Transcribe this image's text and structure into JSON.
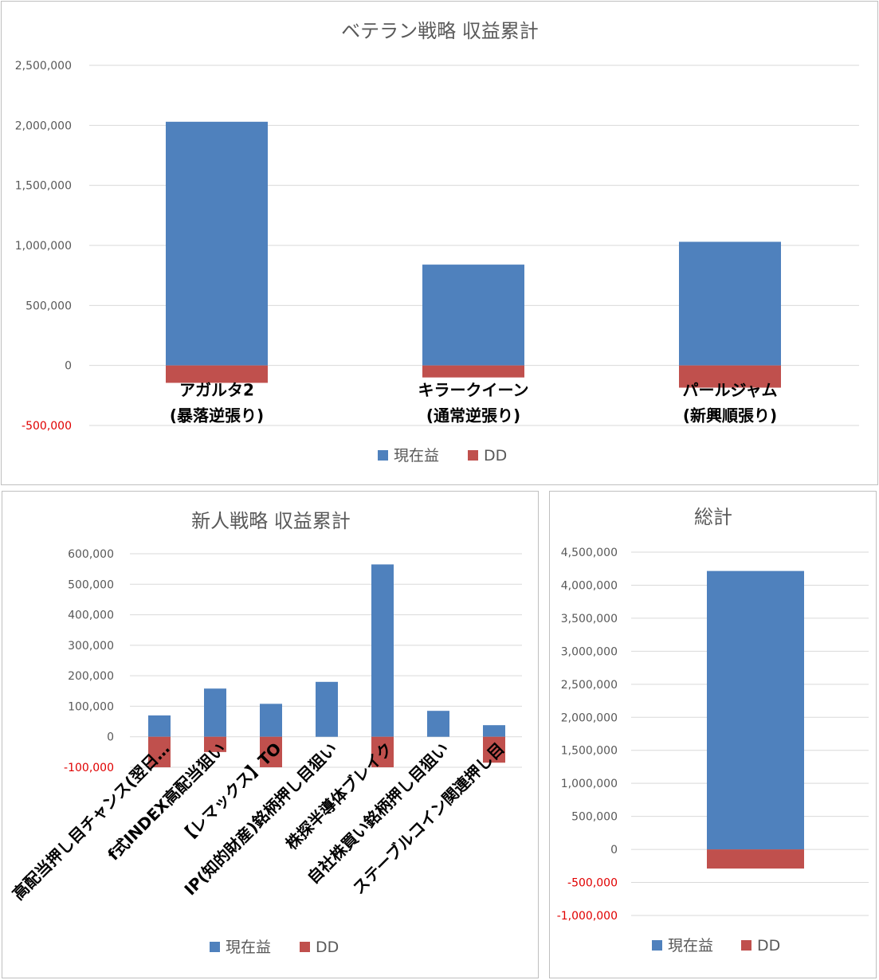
{
  "chart_data": [
    {
      "type": "bar",
      "stacked": true,
      "title": "ベテラン戦略 収益累計",
      "categories": [
        [
          "アガルタ2",
          "(暴落逆張り)"
        ],
        [
          "キラークイーン",
          "(通常逆張り)"
        ],
        [
          "パールジャム",
          "(新興順張り)"
        ]
      ],
      "series": [
        {
          "name": "現在益",
          "color": "#4f81bd",
          "values": [
            2030000,
            840000,
            1030000
          ]
        },
        {
          "name": "DD",
          "color": "#c0504d",
          "values": [
            -145000,
            -100000,
            -185000
          ]
        }
      ],
      "ylim": [
        -500000,
        2500000
      ],
      "yticks": [
        2500000,
        2000000,
        1500000,
        1000000,
        500000,
        0,
        -500000
      ],
      "ytick_labels": [
        "2,500,000",
        "2,000,000",
        "1,500,000",
        "1,000,000",
        "500,000",
        "0",
        "-500,000"
      ],
      "grid": true,
      "legend": "bottom"
    },
    {
      "type": "bar",
      "stacked": true,
      "title": "新人戦略 収益累計",
      "categories": [
        "高配当押し目チャンス(翌日…",
        "f式INDEX高配当狙い",
        "【レマックス】TO",
        "IP(知的財産)銘柄押し目狙い",
        "株探半導体ブレイク",
        "自社株買い銘柄押し目狙い",
        "ステーブルコイン関連押し目"
      ],
      "series": [
        {
          "name": "現在益",
          "color": "#4f81bd",
          "values": [
            70000,
            158000,
            108000,
            180000,
            565000,
            85000,
            38000
          ]
        },
        {
          "name": "DD",
          "color": "#c0504d",
          "values": [
            -100000,
            -50000,
            -100000,
            0,
            -100000,
            0,
            -85000
          ]
        }
      ],
      "ylim": [
        -100000,
        600000
      ],
      "yticks": [
        600000,
        500000,
        400000,
        300000,
        200000,
        100000,
        0,
        -100000
      ],
      "ytick_labels": [
        "600,000",
        "500,000",
        "400,000",
        "300,000",
        "200,000",
        "100,000",
        "0",
        "-100,000"
      ],
      "grid": true,
      "legend": "bottom"
    },
    {
      "type": "bar",
      "stacked": true,
      "title": "総計",
      "categories": [
        ""
      ],
      "series": [
        {
          "name": "現在益",
          "color": "#4f81bd",
          "values": [
            4215000
          ]
        },
        {
          "name": "DD",
          "color": "#c0504d",
          "values": [
            -290000
          ]
        }
      ],
      "ylim": [
        -1000000,
        4500000
      ],
      "yticks": [
        4500000,
        4000000,
        3500000,
        3000000,
        2500000,
        2000000,
        1500000,
        1000000,
        500000,
        0,
        -500000,
        -1000000
      ],
      "ytick_labels": [
        "4,500,000",
        "4,000,000",
        "3,500,000",
        "3,000,000",
        "2,500,000",
        "2,000,000",
        "1,500,000",
        "1,000,000",
        "500,000",
        "0",
        "-500,000",
        "-1,000,000"
      ],
      "grid": true,
      "legend": "bottom"
    }
  ],
  "colors": {
    "positive_axis_text": "#595959",
    "negative_axis_text": "#e00000"
  }
}
